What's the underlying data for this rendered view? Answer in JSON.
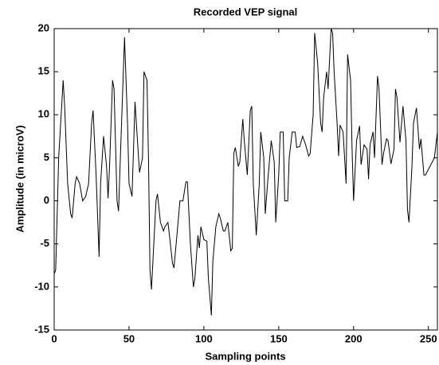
{
  "chart_data": {
    "type": "line",
    "title": "Recorded VEP signal",
    "x_label": "Sampling points",
    "y_label": "Amplitude (in microV)",
    "x": [
      0,
      1,
      3,
      6,
      7,
      9,
      11,
      12,
      14,
      15,
      17,
      19,
      21,
      23,
      25,
      26,
      28,
      30,
      31,
      33,
      35,
      36,
      37,
      39,
      40,
      42,
      43,
      45,
      47,
      49,
      50,
      52,
      54,
      56,
      57,
      59,
      60,
      62,
      63,
      64,
      65,
      68,
      69,
      71,
      73,
      74,
      76,
      77,
      79,
      80,
      82,
      84,
      86,
      88,
      89,
      91,
      93,
      94,
      96,
      97,
      98,
      100,
      102,
      103,
      105,
      106,
      108,
      110,
      111,
      113,
      114,
      116,
      118,
      119,
      120,
      121,
      123,
      124,
      126,
      127,
      129,
      131,
      132,
      133,
      135,
      137,
      138,
      140,
      141,
      143,
      145,
      147,
      148,
      150,
      151,
      153,
      154,
      156,
      157,
      159,
      161,
      162,
      164,
      166,
      168,
      170,
      171,
      173,
      174,
      176,
      178,
      179,
      180,
      182,
      183,
      185,
      186,
      187,
      189,
      190,
      191,
      193,
      195,
      196,
      198,
      199,
      200,
      202,
      204,
      205,
      207,
      209,
      210,
      211,
      213,
      214,
      216,
      217,
      219,
      220,
      222,
      223,
      225,
      227,
      228,
      229,
      231,
      233,
      235,
      236,
      237,
      239,
      240,
      242,
      244,
      245,
      247,
      248,
      251,
      254,
      256
    ],
    "values": [
      -8.5,
      -8,
      5,
      14,
      11,
      2,
      -1.5,
      -2,
      2,
      2.8,
      2,
      0,
      0.5,
      2,
      9,
      10.5,
      3,
      -6.5,
      2,
      7.5,
      4,
      0.3,
      4,
      14,
      13,
      0,
      -1.2,
      9,
      19,
      9,
      2,
      0.5,
      11.5,
      6,
      3.3,
      5,
      15,
      14,
      5,
      -8,
      -10.3,
      0,
      0.8,
      -2.5,
      -3.5,
      -3,
      -2.5,
      -4,
      -7.2,
      -7.8,
      -4,
      0,
      0,
      2.2,
      2.2,
      -5,
      -10,
      -9,
      -4,
      -5.5,
      -3,
      -4.5,
      -4.7,
      -9,
      -13.3,
      -7,
      -3,
      -1.5,
      -2,
      -3.5,
      -3.5,
      -2.5,
      -5.8,
      -5.5,
      5.5,
      6.2,
      4,
      4.5,
      9.5,
      7,
      3,
      10.5,
      11,
      2,
      -4,
      2,
      8,
      5,
      -1.5,
      3,
      7,
      4.5,
      -2.5,
      3,
      8,
      8,
      0,
      0,
      5,
      8,
      8,
      6.2,
      6.3,
      7.5,
      6.5,
      5.2,
      5.5,
      10,
      19.5,
      16,
      9,
      8,
      12,
      15,
      13,
      20,
      19.5,
      15,
      9,
      5.2,
      8.8,
      8,
      2,
      17,
      14,
      6,
      0,
      7,
      8.7,
      4.2,
      6.5,
      6,
      2.5,
      6.5,
      8,
      5,
      14.5,
      13,
      4.2,
      5.5,
      7.2,
      7,
      4.3,
      6,
      13,
      12,
      6.8,
      11,
      7,
      -1,
      -2.5,
      4,
      9,
      10.8,
      6,
      7.2,
      3,
      3,
      4,
      5,
      8
    ],
    "color": "#000000",
    "xlim": [
      0,
      256
    ],
    "xticks": [
      0,
      50,
      100,
      150,
      200,
      250
    ],
    "ylim": [
      -15,
      20
    ],
    "yticks": [
      -15,
      -10,
      -5,
      0,
      5,
      10,
      15,
      20
    ]
  }
}
